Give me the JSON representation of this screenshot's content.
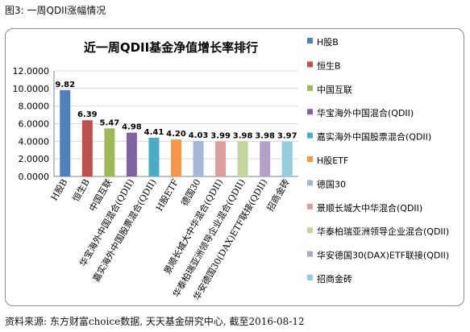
{
  "figure_label": "图3: 一周QDII涨幅情况",
  "source_note": "资料来源: 东方财富choice数据, 天天基金研究中心, 截至2016-08-12",
  "chart_data": {
    "type": "bar",
    "title": "近一周QDII基金净值增长率排行",
    "categories": [
      "H股B",
      "恒生B",
      "中国互联",
      "华宝海外中国混合(QDII)",
      "嘉实海外中国股票混合(QDII)",
      "H股ETF",
      "德国30",
      "景顺长城大中华混合(QDII)",
      "华泰柏瑞亚洲领导企业混合(QDII)",
      "华安德国30(DAX)ETF联接(QDII)",
      "招商金砖"
    ],
    "values": [
      9.82,
      6.39,
      5.47,
      4.98,
      4.41,
      4.2,
      4.03,
      3.99,
      3.98,
      3.98,
      3.97
    ],
    "value_labels": [
      "9.82",
      "6.39",
      "5.47",
      "4.98",
      "4.41",
      "4.20",
      "4.03",
      "3.99",
      "3.98",
      "3.98",
      "3.97"
    ],
    "ylim": [
      0,
      12
    ],
    "yticks": [
      "0.0000",
      "2.0000",
      "4.0000",
      "6.0000",
      "8.0000",
      "10.0000",
      "12.0000"
    ],
    "grid": true,
    "legend_position": "right",
    "legend": [
      "H股B",
      "恒生B",
      "中国互联",
      "华宝海外中国混合(QDII)",
      "嘉实海外中国股票混合(QDII)",
      "H股ETF",
      "德国30",
      "景顺长城大中华混合(QDII)",
      "华泰柏瑞亚洲领导企业混合(QDII)",
      "华安德国30(DAX)ETF联接(QDII)",
      "招商金砖"
    ],
    "colors": [
      "#4f81bd",
      "#c0504d",
      "#9bbb59",
      "#8064a2",
      "#4bacc6",
      "#f79646",
      "#a5b7d6",
      "#db9e9c",
      "#c3d69b",
      "#b3a2c7",
      "#93cddd"
    ]
  }
}
